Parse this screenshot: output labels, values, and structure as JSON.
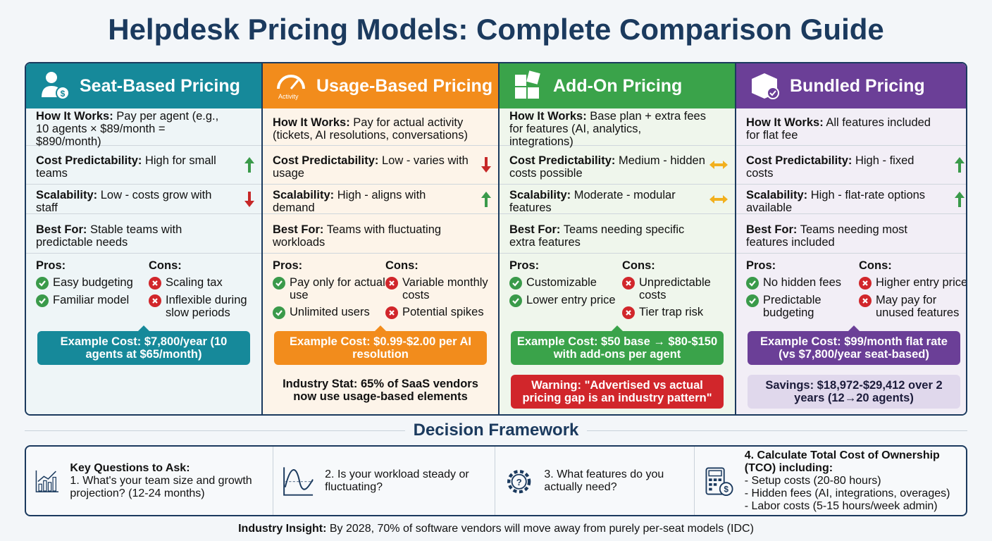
{
  "title": "Helpdesk Pricing Models: Complete Comparison Guide",
  "columns": [
    {
      "name": "Seat-Based Pricing",
      "rows": [
        {
          "label": "How It Works:",
          "text": "Pay per agent (e.g., 10 agents × $89/month = $890/month)"
        },
        {
          "label": "Cost Predictability:",
          "text": "High for small teams"
        },
        {
          "label": "Scalability:",
          "text": "Low - costs grow with staff"
        },
        {
          "label": "Best For:",
          "text": "Stable teams with predictable needs"
        }
      ],
      "pros_label": "Pros:",
      "pros": [
        "Easy budgeting",
        "Familiar model"
      ],
      "cons_label": "Cons:",
      "cons": [
        "Scaling tax",
        "Inflexible during slow periods"
      ],
      "example": "Example Cost: $7,800/year (10 agents at $65/month)"
    },
    {
      "name": "Usage-Based Pricing",
      "icon_label": "Activity",
      "rows": [
        {
          "label": "How It Works:",
          "text": "Pay for actual activity (tickets, AI resolutions, conversations)"
        },
        {
          "label": "Cost Predictability:",
          "text": "Low - varies with usage"
        },
        {
          "label": "Scalability:",
          "text": "High - aligns with demand"
        },
        {
          "label": "Best For:",
          "text": "Teams with fluctuating workloads"
        }
      ],
      "pros_label": "Pros:",
      "pros": [
        "Pay only for actual use",
        "Unlimited users"
      ],
      "cons_label": "Cons:",
      "cons": [
        "Variable monthly costs",
        "Potential spikes"
      ],
      "example": "Example Cost: $0.99-$2.00 per AI resolution",
      "stat": "Industry Stat: 65% of SaaS vendors now use usage-based elements"
    },
    {
      "name": "Add-On Pricing",
      "rows": [
        {
          "label": "How It Works:",
          "text": "Base plan + extra fees for features (AI, analytics, integrations)"
        },
        {
          "label": "Cost Predictability:",
          "text": "Medium - hidden costs possible"
        },
        {
          "label": "Scalability:",
          "text": "Moderate - modular features"
        },
        {
          "label": "Best For:",
          "text": "Teams needing specific extra features"
        }
      ],
      "pros_label": "Pros:",
      "pros": [
        "Customizable",
        "Lower entry price"
      ],
      "cons_label": "Cons:",
      "cons": [
        "Unpredictable costs",
        "Tier trap risk"
      ],
      "example": "Example Cost: $50 base → $80-$150 with add-ons per agent",
      "warning": "Warning: \"Advertised vs actual pricing gap is an industry pattern\""
    },
    {
      "name": "Bundled Pricing",
      "rows": [
        {
          "label": "How It Works:",
          "text": "All features included for flat fee"
        },
        {
          "label": "Cost Predictability:",
          "text": "High - fixed costs"
        },
        {
          "label": "Scalability:",
          "text": "High - flat-rate options available"
        },
        {
          "label": "Best For:",
          "text": "Teams needing most features included"
        }
      ],
      "pros_label": "Pros:",
      "pros": [
        "No hidden fees",
        "Predictable budgeting"
      ],
      "cons_label": "Cons:",
      "cons": [
        "Higher entry price",
        "May pay for unused features"
      ],
      "example": "Example Cost: $99/month flat rate (vs $7,800/year seat-based)",
      "savings": "Savings: $18,972-$29,412 over 2 years (12→20 agents)"
    }
  ],
  "framework": {
    "title": "Decision Framework",
    "items": [
      {
        "heading": "Key Questions to Ask:",
        "text": "1. What's your team size and growth projection? (12-24 months)"
      },
      {
        "text": "2. Is your workload steady or fluctuating?"
      },
      {
        "text": "3. What features do you actually need?"
      },
      {
        "heading": "4. Calculate Total Cost of Ownership (TCO) including:",
        "lines": [
          "- Setup costs (20-80 hours)",
          "- Hidden fees (AI, integrations, overages)",
          "- Labor costs (5-15 hours/week admin)"
        ]
      }
    ]
  },
  "footer": {
    "label": "Industry Insight:",
    "text": "By 2028, 70% of software vendors will move away from purely per-seat models (IDC)"
  }
}
